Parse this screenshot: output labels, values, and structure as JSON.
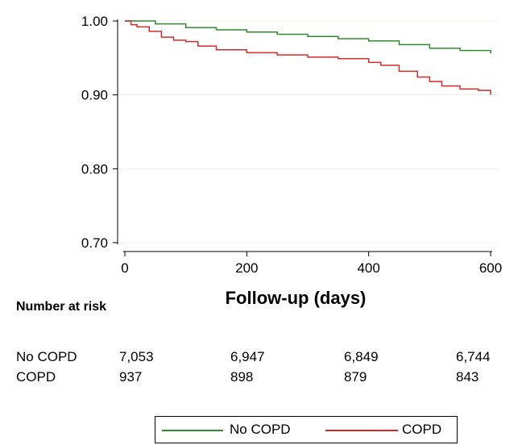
{
  "colors": {
    "no_copd": "#2e8b2e",
    "copd": "#d22b2b",
    "grid": "#f1f1e4"
  },
  "chart_data": {
    "type": "line",
    "title": "",
    "xlabel": "Follow-up (days)",
    "ylabel": "",
    "xlim": [
      0,
      600
    ],
    "ylim": [
      0.7,
      1.0
    ],
    "x_ticks": [
      0,
      200,
      400,
      600
    ],
    "x_tick_labels": [
      "0",
      "200",
      "400",
      "600"
    ],
    "y_ticks": [
      0.7,
      0.8,
      0.9,
      1.0
    ],
    "y_tick_labels": [
      "0.70",
      "0.80",
      "0.90",
      "1.00"
    ],
    "grid": true,
    "legend_position": "bottom",
    "series": [
      {
        "name": "No COPD",
        "color": "#2e8b2e",
        "x": [
          0,
          50,
          100,
          150,
          200,
          250,
          300,
          350,
          400,
          450,
          500,
          550,
          600
        ],
        "y": [
          1.0,
          0.996,
          0.991,
          0.988,
          0.985,
          0.982,
          0.979,
          0.976,
          0.973,
          0.968,
          0.963,
          0.96,
          0.956
        ]
      },
      {
        "name": "COPD",
        "color": "#d22b2b",
        "x": [
          0,
          10,
          20,
          40,
          60,
          80,
          100,
          120,
          150,
          200,
          250,
          300,
          350,
          400,
          420,
          450,
          480,
          500,
          520,
          550,
          580,
          600
        ],
        "y": [
          1.0,
          0.995,
          0.992,
          0.986,
          0.978,
          0.974,
          0.972,
          0.966,
          0.961,
          0.957,
          0.954,
          0.951,
          0.949,
          0.944,
          0.94,
          0.932,
          0.924,
          0.918,
          0.912,
          0.908,
          0.906,
          0.9
        ]
      }
    ],
    "annotations": []
  },
  "risk_table": {
    "title": "Number at risk",
    "rows": [
      {
        "label": "No COPD",
        "values": [
          "7,053",
          "6,947",
          "6,849",
          "6,744"
        ]
      },
      {
        "label": "COPD",
        "values": [
          "937",
          "898",
          "879",
          "843"
        ]
      }
    ]
  },
  "legend": {
    "items": [
      {
        "label": "No COPD",
        "color": "#2e8b2e"
      },
      {
        "label": "COPD",
        "color": "#d22b2b"
      }
    ]
  }
}
